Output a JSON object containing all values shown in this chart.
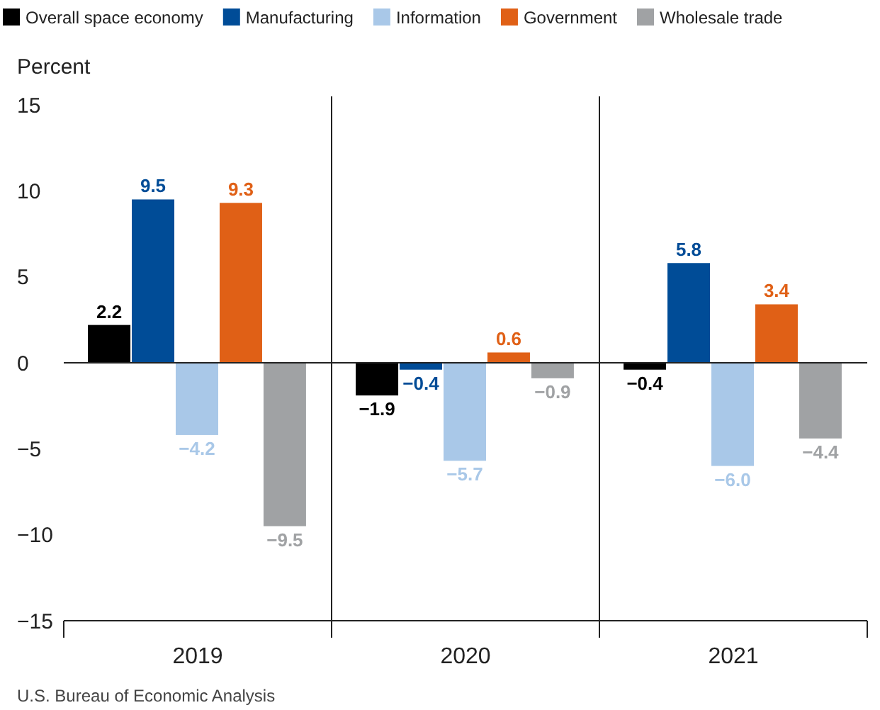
{
  "chart_data": {
    "type": "bar",
    "ylabel": "Percent",
    "categories": [
      "2019",
      "2020",
      "2021"
    ],
    "series": [
      {
        "name": "Overall space economy",
        "color": "#000000",
        "values": [
          2.2,
          -1.9,
          -0.4
        ],
        "value_labels": [
          "2.2",
          "−1.9",
          "−0.4"
        ]
      },
      {
        "name": "Manufacturing",
        "color": "#004c97",
        "values": [
          9.5,
          -0.4,
          5.8
        ],
        "value_labels": [
          "9.5",
          "−0.4",
          "5.8"
        ]
      },
      {
        "name": "Information",
        "color": "#a9c8e8",
        "values": [
          -4.2,
          -5.7,
          -6.0
        ],
        "value_labels": [
          "−4.2",
          "−5.7",
          "−6.0"
        ]
      },
      {
        "name": "Government",
        "color": "#e06016",
        "values": [
          9.3,
          0.6,
          3.4
        ],
        "value_labels": [
          "9.3",
          "0.6",
          "3.4"
        ]
      },
      {
        "name": "Wholesale trade",
        "color": "#a0a2a4",
        "values": [
          -9.5,
          -0.9,
          -4.4
        ],
        "value_labels": [
          "−9.5",
          "−0.9",
          "−4.4"
        ]
      }
    ],
    "ylim": [
      -15,
      15
    ],
    "yticks": [
      15,
      10,
      5,
      0,
      {
        "value": -5,
        "label": "−5"
      },
      {
        "value": -10,
        "label": "−10"
      },
      {
        "value": -15,
        "label": "−15"
      }
    ],
    "legend": "top",
    "annotations": [
      "U.S. Bureau of Economic Analysis"
    ]
  }
}
